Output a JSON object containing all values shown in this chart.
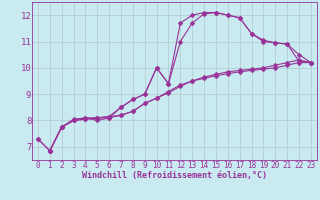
{
  "background_color": "#c8eaf0",
  "line_color": "#993399",
  "marker": "D",
  "markersize": 2.5,
  "linewidth": 0.8,
  "xlabel": "Windchill (Refroidissement éolien,°C)",
  "xlim": [
    -0.5,
    23.5
  ],
  "ylim": [
    6.5,
    12.5
  ],
  "yticks": [
    7,
    8,
    9,
    10,
    11,
    12
  ],
  "xticks": [
    0,
    1,
    2,
    3,
    4,
    5,
    6,
    7,
    8,
    9,
    10,
    11,
    12,
    13,
    14,
    15,
    16,
    17,
    18,
    19,
    20,
    21,
    22,
    23
  ],
  "grid_color": "#b0c8d0",
  "curves": [
    {
      "x": [
        0,
        1,
        2,
        3,
        4,
        5,
        6,
        7,
        8,
        9,
        10,
        11,
        12,
        13,
        14,
        15,
        16,
        17,
        18,
        19,
        20,
        21,
        22,
        23
      ],
      "y": [
        7.3,
        6.85,
        7.75,
        8.05,
        8.1,
        8.1,
        8.15,
        8.5,
        8.8,
        9.0,
        10.0,
        9.4,
        11.0,
        11.7,
        12.05,
        12.1,
        12.0,
        11.9,
        11.3,
        11.05,
        10.95,
        10.9,
        10.5,
        10.2
      ]
    },
    {
      "x": [
        1,
        2,
        3,
        4,
        5,
        6,
        7,
        8,
        9,
        10,
        11,
        12,
        13,
        14,
        15,
        16,
        17,
        18,
        19,
        20,
        21,
        22,
        23
      ],
      "y": [
        6.85,
        7.75,
        8.0,
        8.1,
        8.0,
        8.1,
        8.5,
        8.8,
        9.0,
        10.0,
        9.4,
        11.7,
        12.0,
        12.1,
        12.1,
        12.0,
        11.9,
        11.3,
        11.0,
        10.95,
        10.9,
        10.25,
        10.2
      ]
    },
    {
      "x": [
        1,
        2,
        3,
        4,
        5,
        6,
        7,
        8,
        9,
        10,
        11,
        12,
        13,
        14,
        15,
        16,
        17,
        18,
        19,
        20,
        21,
        22,
        23
      ],
      "y": [
        6.85,
        7.75,
        8.0,
        8.05,
        8.1,
        8.15,
        8.2,
        8.35,
        8.65,
        8.85,
        9.05,
        9.3,
        9.5,
        9.65,
        9.75,
        9.85,
        9.9,
        9.95,
        10.0,
        10.1,
        10.2,
        10.3,
        10.2
      ]
    },
    {
      "x": [
        0,
        1,
        2,
        3,
        4,
        5,
        6,
        7,
        8,
        9,
        10,
        11,
        12,
        13,
        14,
        15,
        16,
        17,
        18,
        19,
        20,
        21,
        22,
        23
      ],
      "y": [
        7.3,
        6.85,
        7.75,
        8.0,
        8.05,
        8.1,
        8.1,
        8.2,
        8.35,
        8.65,
        8.85,
        9.1,
        9.35,
        9.5,
        9.6,
        9.7,
        9.78,
        9.85,
        9.9,
        9.95,
        10.0,
        10.1,
        10.2,
        10.2
      ]
    }
  ]
}
